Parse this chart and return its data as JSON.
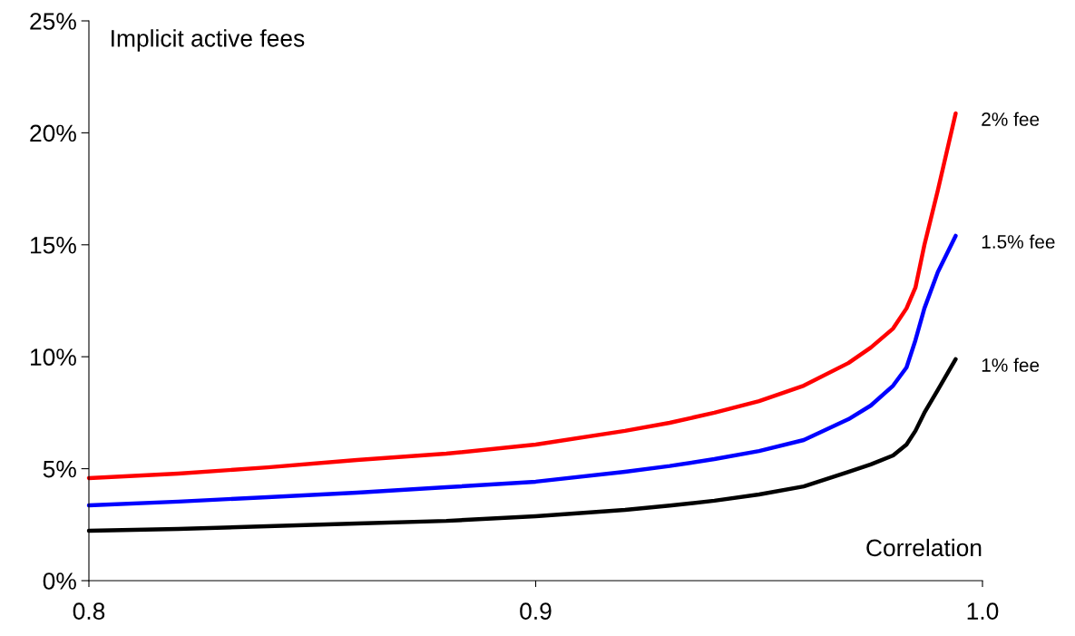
{
  "chart_data": {
    "type": "line",
    "xlabel": "Correlation",
    "ylabel": "Implicit active fees",
    "x": [
      0.8,
      0.82,
      0.84,
      0.86,
      0.88,
      0.9,
      0.92,
      0.93,
      0.94,
      0.95,
      0.96,
      0.97,
      0.975,
      0.98,
      0.983,
      0.985,
      0.987,
      0.99,
      0.994
    ],
    "series": [
      {
        "name": "2% fee",
        "color": "#ff0000",
        "values": [
          4.58,
          4.78,
          5.06,
          5.39,
          5.67,
          6.08,
          6.69,
          7.05,
          7.5,
          8.02,
          8.71,
          9.72,
          10.41,
          11.26,
          12.16,
          13.09,
          14.99,
          17.42,
          20.87
        ]
      },
      {
        "name": "1.5% fee",
        "color": "#0000ff",
        "values": [
          3.36,
          3.53,
          3.73,
          3.93,
          4.17,
          4.42,
          4.86,
          5.12,
          5.43,
          5.79,
          6.28,
          7.21,
          7.82,
          8.71,
          9.52,
          10.74,
          12.16,
          13.78,
          15.4
        ]
      },
      {
        "name": "1% fee",
        "color": "#000000",
        "values": [
          2.23,
          2.31,
          2.43,
          2.55,
          2.67,
          2.88,
          3.16,
          3.35,
          3.57,
          3.85,
          4.21,
          4.86,
          5.19,
          5.59,
          6.08,
          6.69,
          7.5,
          8.51,
          9.89
        ]
      }
    ],
    "xlim": [
      0.8,
      1.0
    ],
    "ylim": [
      0,
      25
    ],
    "xticks": [
      0.8,
      0.9,
      {
        "value": 1.0,
        "label": "1.0"
      }
    ],
    "yticks": [
      {
        "value": 0,
        "label": "0%"
      },
      {
        "value": 5,
        "label": "5%"
      },
      {
        "value": 10,
        "label": "10%"
      },
      {
        "value": 15,
        "label": "15%"
      },
      {
        "value": 20,
        "label": "20%"
      },
      {
        "value": 25,
        "label": "25%"
      }
    ],
    "grid": false,
    "legend": false,
    "marker": "none",
    "line_style": "solid"
  }
}
